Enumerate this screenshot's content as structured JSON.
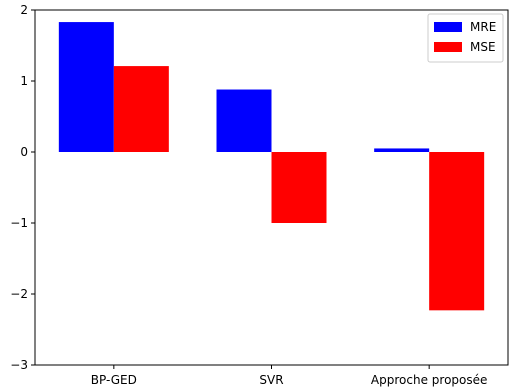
{
  "chart_data": {
    "type": "bar",
    "title": "",
    "xlabel": "",
    "ylabel": "",
    "categories": [
      "BP-GED",
      "SVR",
      "Approche proposée"
    ],
    "series": [
      {
        "name": "MRE",
        "values": [
          1.83,
          0.88,
          0.05
        ],
        "color": "#0000ff"
      },
      {
        "name": "MSE",
        "values": [
          1.21,
          -1.0,
          -2.23
        ],
        "color": "#ff0000"
      }
    ],
    "ylim": [
      -3,
      2
    ],
    "yticks": [
      2,
      1,
      0,
      -1,
      -2,
      -3
    ],
    "ytick_labels": [
      "2",
      "1",
      "0",
      "−1",
      "−2",
      "−3"
    ],
    "grid": false,
    "legend": {
      "position": "top-right"
    }
  }
}
